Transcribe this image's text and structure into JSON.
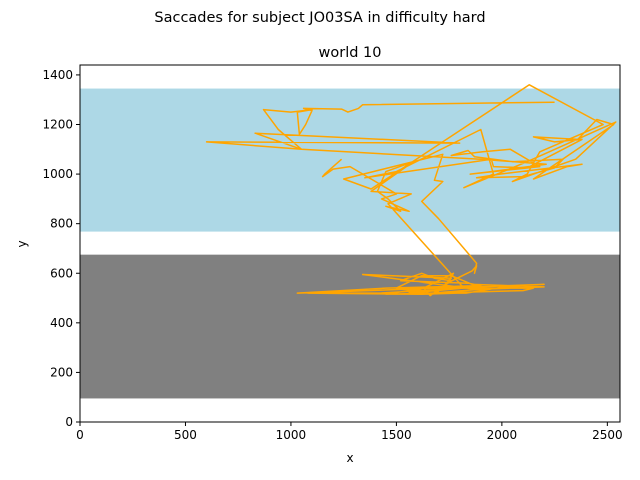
{
  "chart_data": {
    "type": "line",
    "suptitle": "Saccades for subject JO03SA in difficulty hard",
    "title": "world 10",
    "xlabel": "x",
    "ylabel": "y",
    "xlim": [
      0,
      2560
    ],
    "ylim": [
      0,
      1440
    ],
    "xticks": [
      0,
      500,
      1000,
      1500,
      2000,
      2500
    ],
    "yticks": [
      0,
      200,
      400,
      600,
      800,
      1000,
      1200,
      1400
    ],
    "grid": false,
    "regions": [
      {
        "name": "upper band",
        "y_range": [
          768,
          1345
        ],
        "color": "#add8e6"
      },
      {
        "name": "lower band",
        "y_range": [
          95,
          675
        ],
        "color": "#808080"
      }
    ],
    "series": [
      {
        "color": "#ffa500",
        "points": [
          [
            2250,
            1290
          ],
          [
            1340,
            1280
          ],
          [
            1320,
            1265
          ],
          [
            1270,
            1250
          ],
          [
            1240,
            1262
          ],
          [
            1060,
            1265
          ],
          [
            1100,
            1256
          ],
          [
            1070,
            1200
          ],
          [
            1040,
            1160
          ],
          [
            1030,
            1250
          ],
          [
            1100,
            1260
          ],
          [
            1000,
            1250
          ],
          [
            870,
            1260
          ],
          [
            940,
            1180
          ],
          [
            1050,
            1100
          ],
          [
            600,
            1130
          ],
          [
            1800,
            1125
          ],
          [
            830,
            1165
          ],
          [
            1050,
            1100
          ],
          [
            1900,
            1060
          ],
          [
            2210,
            1040
          ],
          [
            1950,
            1010
          ],
          [
            1850,
            1000
          ],
          [
            2180,
            1030
          ],
          [
            2040,
            1100
          ],
          [
            1910,
            1090
          ],
          [
            1760,
            1075
          ],
          [
            1840,
            1095
          ],
          [
            1870,
            1070
          ],
          [
            2050,
            1050
          ],
          [
            2290,
            1060
          ],
          [
            2250,
            1025
          ],
          [
            2100,
            990
          ],
          [
            1880,
            985
          ],
          [
            1990,
            1000
          ],
          [
            2380,
            1040
          ],
          [
            2310,
            1030
          ],
          [
            2150,
            980
          ],
          [
            2530,
            1200
          ],
          [
            2450,
            1220
          ],
          [
            2360,
            1140
          ],
          [
            2150,
            1150
          ],
          [
            2250,
            1130
          ],
          [
            2380,
            1140
          ],
          [
            2120,
            1025
          ],
          [
            1960,
            1030
          ],
          [
            1950,
            1060
          ],
          [
            1350,
            985
          ],
          [
            1500,
            1010
          ],
          [
            1900,
            1180
          ],
          [
            1960,
            1000
          ],
          [
            1820,
            945
          ],
          [
            2120,
            1050
          ],
          [
            2540,
            1210
          ],
          [
            2350,
            1060
          ],
          [
            2050,
            970
          ],
          [
            2120,
            1000
          ],
          [
            2180,
            1090
          ],
          [
            2480,
            1200
          ],
          [
            2130,
            1360
          ],
          [
            1380,
            940
          ],
          [
            1250,
            980
          ],
          [
            1720,
            1080
          ],
          [
            1680,
            975
          ],
          [
            1720,
            970
          ],
          [
            1620,
            890
          ],
          [
            1700,
            820
          ],
          [
            1880,
            640
          ],
          [
            1870,
            600
          ],
          [
            1880,
            630
          ],
          [
            1860,
            610
          ],
          [
            1740,
            560
          ],
          [
            1770,
            600
          ],
          [
            1630,
            540
          ],
          [
            1560,
            520
          ],
          [
            1880,
            545
          ],
          [
            2200,
            555
          ],
          [
            1030,
            520
          ],
          [
            1450,
            540
          ],
          [
            1900,
            550
          ],
          [
            1840,
            560
          ],
          [
            1520,
            570
          ],
          [
            1620,
            600
          ],
          [
            1680,
            580
          ],
          [
            1760,
            570
          ],
          [
            1660,
            510
          ],
          [
            1630,
            540
          ],
          [
            1450,
            515
          ],
          [
            2100,
            530
          ],
          [
            2150,
            540
          ],
          [
            1500,
            540
          ],
          [
            1620,
            590
          ],
          [
            1760,
            590
          ],
          [
            1860,
            555
          ],
          [
            2200,
            545
          ],
          [
            1880,
            535
          ],
          [
            1340,
            595
          ],
          [
            1760,
            580
          ],
          [
            1690,
            520
          ],
          [
            1600,
            515
          ],
          [
            2120,
            550
          ],
          [
            2010,
            545
          ],
          [
            1830,
            520
          ],
          [
            1790,
            520
          ],
          [
            1620,
            515
          ],
          [
            1080,
            520
          ],
          [
            1420,
            520
          ],
          [
            1820,
            540
          ],
          [
            1460,
            880
          ],
          [
            1570,
            920
          ],
          [
            1380,
            930
          ],
          [
            1580,
            1050
          ],
          [
            1450,
            1010
          ],
          [
            1410,
            930
          ],
          [
            1460,
            900
          ],
          [
            1520,
            850
          ],
          [
            1450,
            870
          ],
          [
            1560,
            850
          ],
          [
            1430,
            900
          ],
          [
            1500,
            920
          ],
          [
            1280,
            1030
          ],
          [
            1200,
            1020
          ],
          [
            1150,
            990
          ],
          [
            1160,
            1000
          ],
          [
            1240,
            1060
          ]
        ]
      }
    ]
  }
}
